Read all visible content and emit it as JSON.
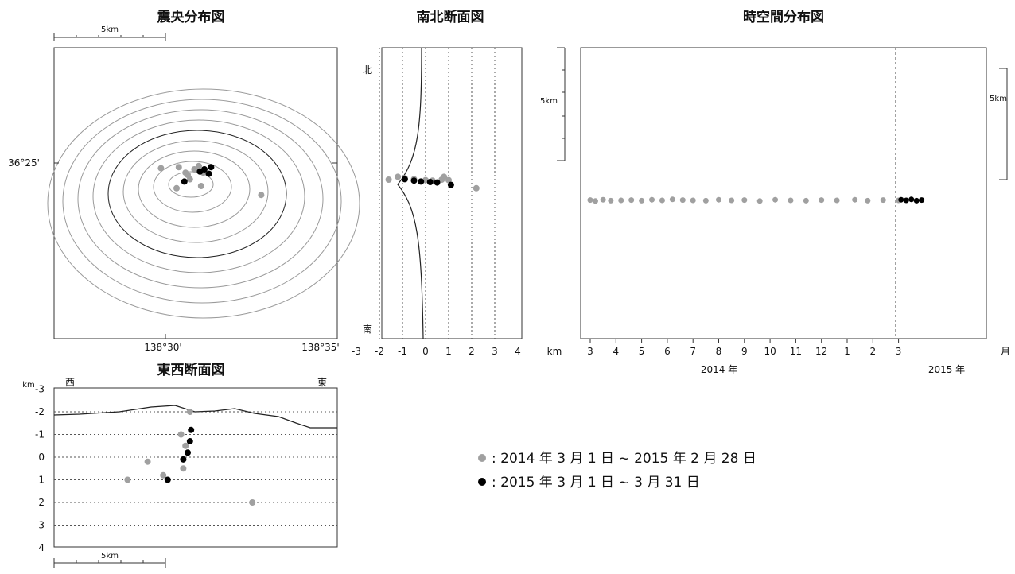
{
  "colors": {
    "previous": "#a0a0a0",
    "recent": "#000000",
    "contour": "#9a9a9a",
    "frame": "#333333"
  },
  "epicenter_map": {
    "title": "震央分布図",
    "scale_label": "5km",
    "lat_label": "36°25'",
    "lon_labels": [
      "138°30'",
      "138°35'"
    ]
  },
  "ns_section": {
    "title": "南北断面図",
    "north_label": "北",
    "south_label": "南",
    "scale_label": "5km",
    "unit_label": "km"
  },
  "st_plot": {
    "title": "時空間分布図",
    "scale_label": "5km",
    "month_unit": "月",
    "year_labels": [
      "2014 年",
      "2015 年"
    ]
  },
  "ew_section": {
    "title": "東西断面図",
    "west_label": "西",
    "east_label": "東",
    "unit_label": "km",
    "scale_label": "5km"
  },
  "legend": {
    "previous_label": ": 2014 年 3 月 1 日 ~ 2015 年 2 月 28 日",
    "recent_label": ": 2015 年 3 月 1 日 ~ 3 月 31 日"
  },
  "chart_data": [
    {
      "type": "scatter",
      "panel": "epicenter_map",
      "title": "震央分布図",
      "xlabel": "",
      "ylabel": "",
      "ticks": {
        "lat": [
          "36°25'"
        ],
        "lon": [
          "138°30'",
          "138°35'"
        ]
      },
      "series": [
        {
          "color": "#a0a0a0",
          "points": [
            [
              -0.2,
              0.3
            ],
            [
              0.6,
              0.35
            ],
            [
              0.9,
              0.1
            ],
            [
              1.0,
              0.0
            ],
            [
              1.3,
              0.25
            ],
            [
              1.5,
              0.4
            ],
            [
              1.7,
              0.1
            ],
            [
              1.1,
              -0.2
            ],
            [
              0.5,
              -0.6
            ],
            [
              1.6,
              -0.5
            ],
            [
              4.3,
              -0.9
            ]
          ]
        },
        {
          "color": "#000000",
          "points": [
            [
              0.85,
              -0.3
            ],
            [
              1.55,
              0.15
            ],
            [
              1.75,
              0.25
            ],
            [
              1.95,
              0.05
            ],
            [
              2.05,
              0.35
            ]
          ]
        }
      ]
    },
    {
      "type": "scatter",
      "panel": "ns_section",
      "title": "南北断面図",
      "xlabel": "km",
      "xticks": [
        -3,
        -2,
        -1,
        0,
        1,
        2,
        3,
        4
      ],
      "series": [
        {
          "color": "#a0a0a0",
          "points": [
            [
              -1.6,
              1.0
            ],
            [
              -1.2,
              1.6
            ],
            [
              -0.9,
              1.3
            ],
            [
              -0.5,
              1.1
            ],
            [
              0.0,
              0.9
            ],
            [
              0.3,
              0.8
            ],
            [
              0.7,
              1.0
            ],
            [
              1.0,
              0.9
            ],
            [
              0.8,
              1.6
            ],
            [
              2.2,
              -0.8
            ]
          ]
        },
        {
          "color": "#000000",
          "points": [
            [
              -0.9,
              1.1
            ],
            [
              -0.5,
              0.8
            ],
            [
              -0.2,
              0.6
            ],
            [
              0.2,
              0.5
            ],
            [
              0.5,
              0.4
            ],
            [
              1.1,
              -0.1
            ]
          ]
        }
      ]
    },
    {
      "type": "scatter",
      "panel": "st_plot",
      "title": "時空間分布図",
      "xticks": [
        "3",
        "4",
        "5",
        "6",
        "7",
        "8",
        "9",
        "10",
        "11",
        "12",
        "1",
        "2",
        "3"
      ],
      "year_labels": [
        "2014 年",
        "2015 年"
      ],
      "series": [
        {
          "color": "#a0a0a0",
          "points": [
            [
              3.0,
              -0.4
            ],
            [
              3.2,
              -0.7
            ],
            [
              3.5,
              -0.3
            ],
            [
              3.8,
              -0.6
            ],
            [
              4.2,
              -0.5
            ],
            [
              4.6,
              -0.4
            ],
            [
              5.0,
              -0.6
            ],
            [
              5.4,
              -0.3
            ],
            [
              5.8,
              -0.5
            ],
            [
              6.2,
              -0.2
            ],
            [
              6.6,
              -0.4
            ],
            [
              7.0,
              -0.5
            ],
            [
              7.5,
              -0.6
            ],
            [
              8.0,
              -0.3
            ],
            [
              8.5,
              -0.5
            ],
            [
              9.0,
              -0.4
            ],
            [
              9.6,
              -0.7
            ],
            [
              10.2,
              -0.3
            ],
            [
              10.8,
              -0.5
            ],
            [
              11.4,
              -0.6
            ],
            [
              12.0,
              -0.4
            ],
            [
              12.6,
              -0.5
            ],
            [
              13.3,
              -0.3
            ],
            [
              13.8,
              -0.6
            ],
            [
              14.4,
              -0.4
            ],
            [
              15.0,
              -0.5
            ]
          ]
        },
        {
          "color": "#000000",
          "points": [
            [
              15.1,
              -0.3
            ],
            [
              15.3,
              -0.5
            ],
            [
              15.5,
              -0.2
            ],
            [
              15.7,
              -0.6
            ],
            [
              15.9,
              -0.4
            ]
          ]
        }
      ]
    },
    {
      "type": "scatter",
      "panel": "ew_section",
      "title": "東西断面図",
      "ylabel": "km",
      "yticks": [
        -3,
        -2,
        -1,
        0,
        1,
        2,
        3,
        4
      ],
      "series": [
        {
          "color": "#a0a0a0",
          "points": [
            [
              -2.2,
              1.0
            ],
            [
              -1.3,
              0.2
            ],
            [
              -0.6,
              0.8
            ],
            [
              0.2,
              -1.0
            ],
            [
              0.4,
              -0.5
            ],
            [
              0.6,
              -2.0
            ],
            [
              0.3,
              0.5
            ],
            [
              3.4,
              2.0
            ]
          ]
        },
        {
          "color": "#000000",
          "points": [
            [
              -0.4,
              1.0
            ],
            [
              0.3,
              0.1
            ],
            [
              0.5,
              -0.2
            ],
            [
              0.6,
              -0.7
            ],
            [
              0.65,
              -1.2
            ]
          ]
        }
      ]
    }
  ]
}
